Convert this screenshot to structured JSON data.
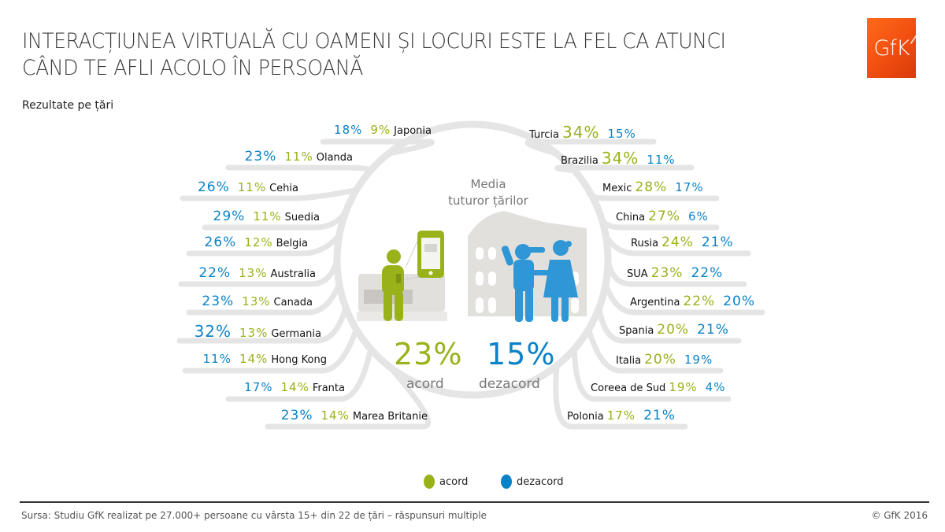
{
  "header": {
    "title_line1": "INTERACȚIUNEA VIRTUALĂ CU OAMENI ȘI LOCURI ESTE LA FEL CA ATUNCI",
    "title_line2": "CÂND TE AFLI ACOLO ÎN PERSOANĂ",
    "subtitle": "Rezultate pe țări",
    "logo_text": "GfK"
  },
  "colors": {
    "acord": "#99b21a",
    "dezacord": "#0a82c8",
    "logo": "#f04e10",
    "connector": "#e3e3e3"
  },
  "center": {
    "label_line1": "Media",
    "label_line2": "tuturor țărilor",
    "acord_value": "23%",
    "acord_label": "acord",
    "dezacord_value": "15%",
    "dezacord_label": "dezacord"
  },
  "legend": {
    "acord": "acord",
    "dezacord": "dezacord"
  },
  "footer": {
    "source": "Sursa: Studiu GfK realizat pe 27.000+ persoane cu vârsta 15+ din 22 de țări – răspunsuri multiple",
    "copyright": "© GfK 2016"
  },
  "chart_data": {
    "type": "table",
    "title": "Interacțiunea virtuală cu oameni și locuri este la fel ca atunci când te afli acolo în persoană",
    "subtitle": "Rezultate pe țări",
    "series_names": [
      "acord",
      "dezacord"
    ],
    "average": {
      "acord": 23,
      "dezacord": 15
    },
    "left": [
      {
        "country": "Japonia",
        "acord": 9,
        "dezacord": 18
      },
      {
        "country": "Olanda",
        "acord": 11,
        "dezacord": 23
      },
      {
        "country": "Cehia",
        "acord": 11,
        "dezacord": 26
      },
      {
        "country": "Suedia",
        "acord": 11,
        "dezacord": 29
      },
      {
        "country": "Belgia",
        "acord": 12,
        "dezacord": 26
      },
      {
        "country": "Australia",
        "acord": 13,
        "dezacord": 22
      },
      {
        "country": "Canada",
        "acord": 13,
        "dezacord": 23
      },
      {
        "country": "Germania",
        "acord": 13,
        "dezacord": 32
      },
      {
        "country": "Hong Kong",
        "acord": 14,
        "dezacord": 11
      },
      {
        "country": "Franta",
        "acord": 14,
        "dezacord": 17
      },
      {
        "country": "Marea Britanie",
        "acord": 14,
        "dezacord": 23
      }
    ],
    "right": [
      {
        "country": "Turcia",
        "acord": 34,
        "dezacord": 15
      },
      {
        "country": "Brazilia",
        "acord": 34,
        "dezacord": 11
      },
      {
        "country": "Mexic",
        "acord": 28,
        "dezacord": 17
      },
      {
        "country": "China",
        "acord": 27,
        "dezacord": 6
      },
      {
        "country": "Rusia",
        "acord": 24,
        "dezacord": 21
      },
      {
        "country": "SUA",
        "acord": 23,
        "dezacord": 22
      },
      {
        "country": "Argentina",
        "acord": 22,
        "dezacord": 20
      },
      {
        "country": "Spania",
        "acord": 20,
        "dezacord": 21
      },
      {
        "country": "Italia",
        "acord": 20,
        "dezacord": 19
      },
      {
        "country": "Coreea de Sud",
        "acord": 19,
        "dezacord": 4
      },
      {
        "country": "Polonia",
        "acord": 17,
        "dezacord": 21
      }
    ]
  }
}
